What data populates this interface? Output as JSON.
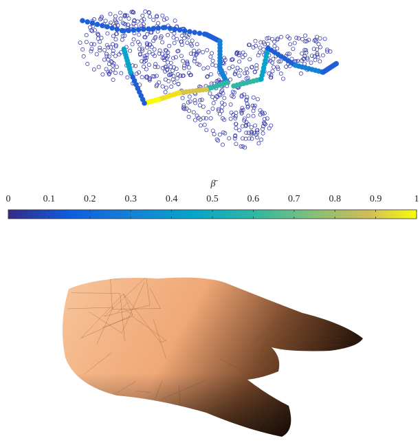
{
  "colorbar": {
    "label": "β̄",
    "lim": [
      0,
      1
    ],
    "ticks": [
      0,
      0.1,
      0.2,
      0.3,
      0.4,
      0.5,
      0.6,
      0.7,
      0.8,
      0.9,
      1
    ]
  }
}
